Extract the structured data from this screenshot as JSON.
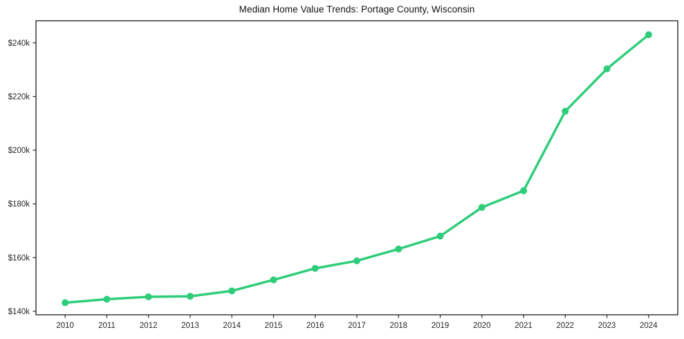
{
  "title": "Median Home Value Trends: Portage County, Wisconsin",
  "chart_data": {
    "type": "line",
    "title": "Median Home Value Trends: Portage County, Wisconsin",
    "xlabel": "",
    "ylabel": "",
    "units": "USD thousands",
    "x": [
      2010,
      2011,
      2012,
      2013,
      2014,
      2015,
      2016,
      2017,
      2018,
      2019,
      2020,
      2021,
      2022,
      2023,
      2024
    ],
    "series": [
      {
        "name": "Median Home Value",
        "values": [
          143.2,
          144.5,
          145.4,
          145.6,
          147.6,
          151.7,
          156.0,
          158.8,
          163.2,
          168.0,
          178.7,
          184.9,
          214.5,
          230.3,
          243.0
        ]
      }
    ],
    "xlim": [
      2009.3,
      2024.7
    ],
    "ylim": [
      138.7,
      248.2
    ],
    "yticks": {
      "values": [
        140,
        160,
        180,
        200,
        220,
        240
      ],
      "labels": [
        "$140k",
        "$160k",
        "$180k",
        "$200k",
        "$220k",
        "$240k"
      ]
    },
    "xticks": {
      "values": [
        2010,
        2011,
        2012,
        2013,
        2014,
        2015,
        2016,
        2017,
        2018,
        2019,
        2020,
        2021,
        2022,
        2023,
        2024
      ],
      "labels": [
        "2010",
        "2011",
        "2012",
        "2013",
        "2014",
        "2015",
        "2016",
        "2017",
        "2018",
        "2019",
        "2020",
        "2021",
        "2022",
        "2023",
        "2024"
      ]
    },
    "grid": false,
    "legend": "none",
    "line_color": "#2fcd7b",
    "line_width": 3.5,
    "marker": "circle",
    "marker_radius": 5,
    "spine_color": "#1a1a1a",
    "tick_color": "#262626"
  }
}
